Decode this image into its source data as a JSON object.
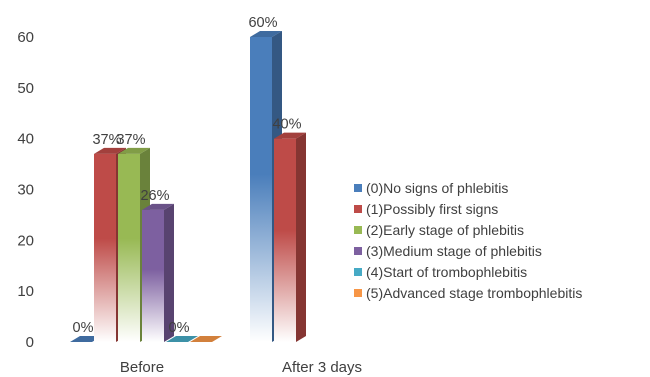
{
  "chart_data": {
    "type": "bar",
    "style": "3d-clustered-column",
    "categories": [
      "Before",
      "After 3 days"
    ],
    "ylim": [
      0,
      60
    ],
    "yticks": [
      0,
      10,
      20,
      30,
      40,
      50,
      60
    ],
    "grid": false,
    "legend_position": "right",
    "series": [
      {
        "name": "(0)No signs of phlebitis",
        "color": "#4a7ebb",
        "values": [
          0,
          60
        ],
        "labels": [
          "0%",
          "60%"
        ]
      },
      {
        "name": "(1)Possibly first signs",
        "color": "#be4b48",
        "values": [
          37,
          40
        ],
        "labels": [
          "37%",
          "40%"
        ]
      },
      {
        "name": "(2)Early stage of phlebitis",
        "color": "#98b954",
        "values": [
          37,
          null
        ],
        "labels": [
          "37%",
          ""
        ]
      },
      {
        "name": "(3)Medium stage of phlebitis",
        "color": "#7d60a0",
        "values": [
          26,
          null
        ],
        "labels": [
          "26%",
          ""
        ]
      },
      {
        "name": "(4)Start of trombophlebitis",
        "color": "#46aac5",
        "values": [
          0,
          null
        ],
        "labels": [
          "0%",
          ""
        ]
      },
      {
        "name": "(5)Advanced stage trombophlebitis",
        "color": "#f79646",
        "values": [
          0,
          null
        ],
        "labels": [
          "",
          ""
        ]
      }
    ]
  }
}
